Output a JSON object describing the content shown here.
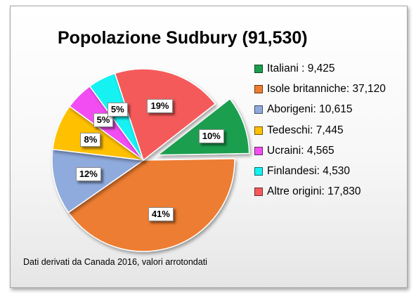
{
  "chart_data": {
    "type": "pie",
    "title": "Popolazione Sudbury (91,530)",
    "legend_position": "right",
    "slices": [
      {
        "name": "Italiani",
        "legend_label": "Italiani : 9,425",
        "value": 9425,
        "percent_label": "10%",
        "color": "#1d9e4f",
        "exploded": true
      },
      {
        "name": "Isole britanniche",
        "legend_label": "Isole britanniche: 37,120",
        "value": 37120,
        "percent_label": "41%",
        "color": "#ed7d31",
        "exploded": false
      },
      {
        "name": "Aborigeni",
        "legend_label": "Aborigeni: 10,615",
        "value": 10615,
        "percent_label": "12%",
        "color": "#8faadc",
        "exploded": false
      },
      {
        "name": "Tedeschi",
        "legend_label": "Tedeschi: 7,445",
        "value": 7445,
        "percent_label": "8%",
        "color": "#ffc000",
        "exploded": false
      },
      {
        "name": "Ucraini",
        "legend_label": "Ucraini: 4,565",
        "value": 4565,
        "percent_label": "5%",
        "color": "#f24ef2",
        "exploded": false
      },
      {
        "name": "Finlandesi",
        "legend_label": "Finlandesi: 4,530",
        "value": 4530,
        "percent_label": "5%",
        "color": "#14f2f2",
        "exploded": false
      },
      {
        "name": "Altre origini",
        "legend_label": "Altre origini: 17,830",
        "value": 17830,
        "percent_label": "19%",
        "color": "#f55a5a",
        "exploded": false
      }
    ],
    "source_note": "Dati derivati da Canada 2016, valori arrotondati"
  }
}
